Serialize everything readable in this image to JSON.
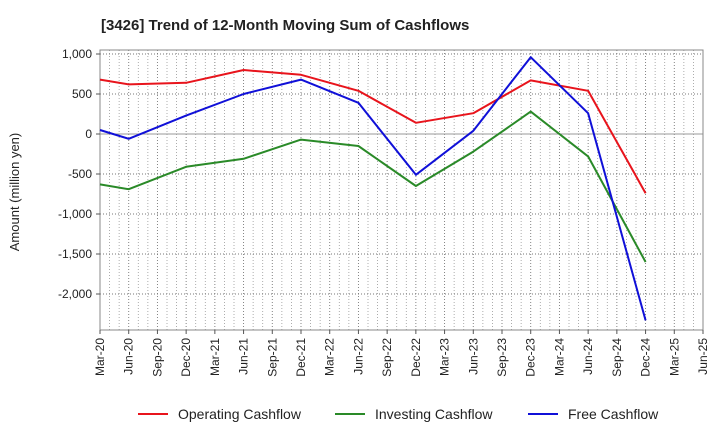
{
  "chart_data": {
    "type": "line",
    "title": "[3426]  Trend of 12-Month Moving Sum of Cashflows",
    "xlabel": "",
    "ylabel": "Amount (million yen)",
    "ylim": [
      -2450,
      1050
    ],
    "yticks": [
      1000,
      500,
      0,
      -500,
      -1000,
      -1500,
      -2000
    ],
    "ytick_labels": [
      "1,000",
      "500",
      "0",
      "-500",
      "-1,000",
      "-1,500",
      "-2,000"
    ],
    "categories": [
      "Mar-20",
      "Jun-20",
      "Sep-20",
      "Dec-20",
      "Mar-21",
      "Jun-21",
      "Sep-21",
      "Dec-21",
      "Mar-22",
      "Jun-22",
      "Sep-22",
      "Dec-22",
      "Mar-23",
      "Jun-23",
      "Sep-23",
      "Dec-23",
      "Mar-24",
      "Jun-24",
      "Sep-24",
      "Dec-24",
      "Mar-25",
      "Jun-25"
    ],
    "grid": true,
    "legend_position": "bottom",
    "series": [
      {
        "name": "Operating Cashflow",
        "color": "#e8141c",
        "points": [
          [
            "Mar-20",
            680
          ],
          [
            "Jun-20",
            620
          ],
          [
            "Dec-20",
            640
          ],
          [
            "Jun-21",
            800
          ],
          [
            "Dec-21",
            740
          ],
          [
            "Jun-22",
            540
          ],
          [
            "Dec-22",
            140
          ],
          [
            "Jun-23",
            260
          ],
          [
            "Dec-23",
            670
          ],
          [
            "Jun-24",
            540
          ],
          [
            "Dec-24",
            -740
          ]
        ]
      },
      {
        "name": "Investing Cashflow",
        "color": "#2a8a28",
        "points": [
          [
            "Mar-20",
            -630
          ],
          [
            "Jun-20",
            -690
          ],
          [
            "Dec-20",
            -410
          ],
          [
            "Jun-21",
            -310
          ],
          [
            "Dec-21",
            -70
          ],
          [
            "Jun-22",
            -150
          ],
          [
            "Dec-22",
            -650
          ],
          [
            "Jun-23",
            -220
          ],
          [
            "Dec-23",
            280
          ],
          [
            "Jun-24",
            -280
          ],
          [
            "Dec-24",
            -1600
          ]
        ]
      },
      {
        "name": "Free Cashflow",
        "color": "#1010d8",
        "points": [
          [
            "Mar-20",
            50
          ],
          [
            "Jun-20",
            -60
          ],
          [
            "Dec-20",
            230
          ],
          [
            "Jun-21",
            500
          ],
          [
            "Dec-21",
            680
          ],
          [
            "Jun-22",
            390
          ],
          [
            "Dec-22",
            -510
          ],
          [
            "Jun-23",
            40
          ],
          [
            "Dec-23",
            960
          ],
          [
            "Jun-24",
            260
          ],
          [
            "Dec-24",
            -2330
          ]
        ]
      }
    ]
  }
}
